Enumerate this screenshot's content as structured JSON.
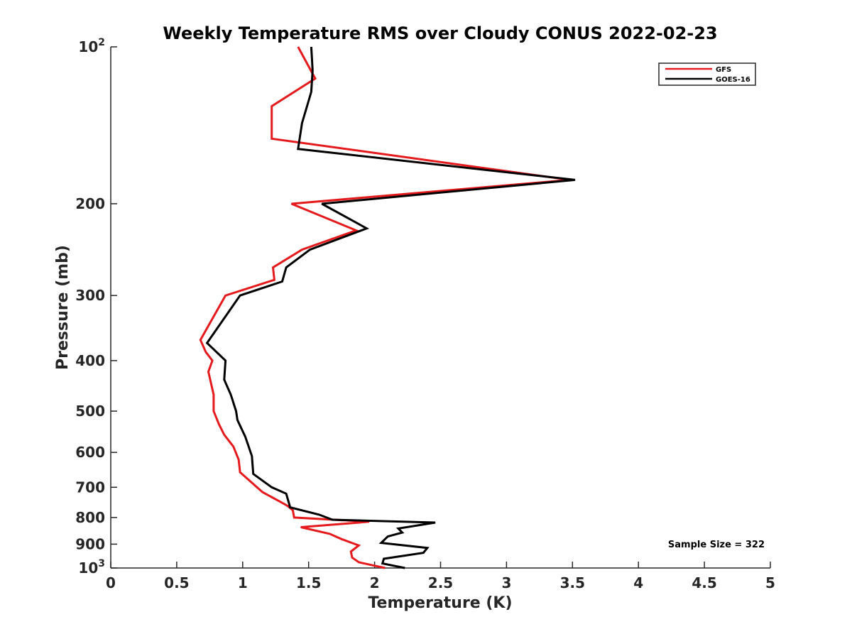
{
  "chart_data": {
    "type": "line",
    "title": "Weekly Temperature RMS over Cloudy CONUS 2022-02-23",
    "xlabel": "Temperature (K)",
    "ylabel": "Pressure (mb)",
    "xlim": [
      0,
      5
    ],
    "ylim": [
      100,
      1000
    ],
    "y_scale": "log",
    "y_reversed": true,
    "grid": false,
    "legend_position": "top-right",
    "x_ticks": [
      "0",
      "0.5",
      "1",
      "1.5",
      "2",
      "2.5",
      "3",
      "3.5",
      "4",
      "4.5",
      "5"
    ],
    "y_ticks": [
      {
        "value": 100,
        "base": "10",
        "exp": "2"
      },
      {
        "value": 200,
        "label": "200"
      },
      {
        "value": 300,
        "label": "300"
      },
      {
        "value": 400,
        "label": "400"
      },
      {
        "value": 500,
        "label": "500"
      },
      {
        "value": 600,
        "label": "600"
      },
      {
        "value": 700,
        "label": "700"
      },
      {
        "value": 800,
        "label": "800"
      },
      {
        "value": 900,
        "label": "900"
      },
      {
        "value": 1000,
        "base": "10",
        "exp": "3"
      }
    ],
    "annotation": "Sample Size = 322",
    "series": [
      {
        "name": "GFS",
        "color": "#e41a1c",
        "points": [
          [
            1.42,
            100
          ],
          [
            1.55,
            115
          ],
          [
            1.22,
            130
          ],
          [
            1.22,
            150
          ],
          [
            3.48,
            180
          ],
          [
            1.37,
            200
          ],
          [
            1.86,
            225
          ],
          [
            1.45,
            245
          ],
          [
            1.23,
            265
          ],
          [
            1.24,
            280
          ],
          [
            0.87,
            300
          ],
          [
            0.68,
            365
          ],
          [
            0.72,
            385
          ],
          [
            0.77,
            400
          ],
          [
            0.74,
            420
          ],
          [
            0.78,
            465
          ],
          [
            0.78,
            500
          ],
          [
            0.82,
            530
          ],
          [
            0.86,
            555
          ],
          [
            0.93,
            585
          ],
          [
            0.97,
            620
          ],
          [
            0.98,
            655
          ],
          [
            1.15,
            715
          ],
          [
            1.28,
            745
          ],
          [
            1.34,
            760
          ],
          [
            1.38,
            775
          ],
          [
            1.39,
            800
          ],
          [
            1.96,
            815
          ],
          [
            1.44,
            835
          ],
          [
            1.66,
            860
          ],
          [
            1.75,
            880
          ],
          [
            1.88,
            905
          ],
          [
            1.82,
            930
          ],
          [
            1.83,
            955
          ],
          [
            1.88,
            975
          ],
          [
            2.08,
            1000
          ]
        ]
      },
      {
        "name": "GOES-16",
        "color": "#000000",
        "points": [
          [
            1.52,
            100
          ],
          [
            1.53,
            111
          ],
          [
            1.52,
            122
          ],
          [
            1.45,
            140
          ],
          [
            1.42,
            157
          ],
          [
            3.52,
            180
          ],
          [
            1.6,
            200
          ],
          [
            1.94,
            223
          ],
          [
            1.51,
            245
          ],
          [
            1.33,
            265
          ],
          [
            1.3,
            282
          ],
          [
            0.98,
            300
          ],
          [
            0.73,
            370
          ],
          [
            0.87,
            400
          ],
          [
            0.86,
            435
          ],
          [
            0.91,
            465
          ],
          [
            0.95,
            500
          ],
          [
            0.96,
            520
          ],
          [
            1.02,
            560
          ],
          [
            1.07,
            610
          ],
          [
            1.08,
            660
          ],
          [
            1.22,
            700
          ],
          [
            1.33,
            720
          ],
          [
            1.36,
            765
          ],
          [
            1.58,
            790
          ],
          [
            1.68,
            808
          ],
          [
            2.46,
            818
          ],
          [
            2.18,
            840
          ],
          [
            2.21,
            855
          ],
          [
            2.1,
            870
          ],
          [
            2.05,
            895
          ],
          [
            2.4,
            915
          ],
          [
            2.37,
            935
          ],
          [
            2.07,
            960
          ],
          [
            2.06,
            980
          ],
          [
            2.23,
            1000
          ]
        ]
      }
    ]
  }
}
